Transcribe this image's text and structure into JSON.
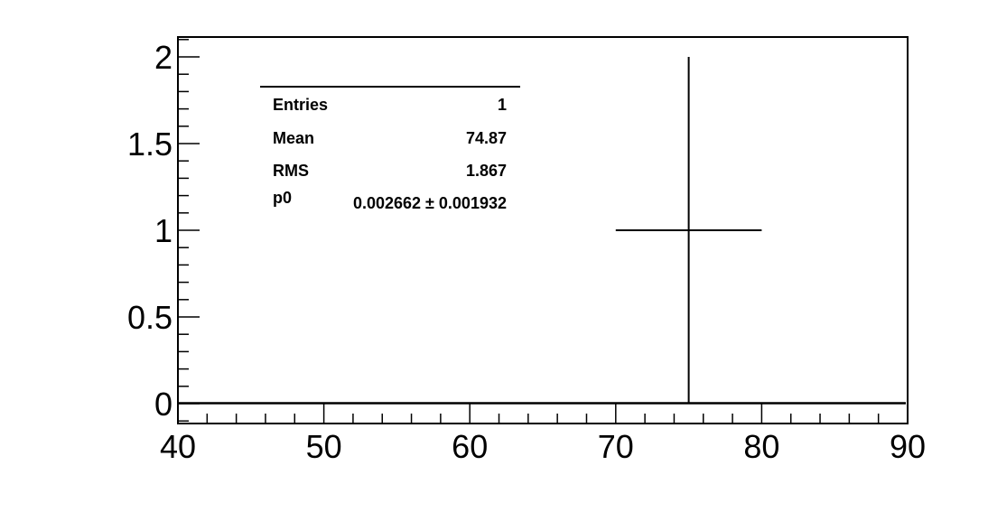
{
  "chart_data": {
    "type": "scatter",
    "title": "",
    "xlabel": "",
    "ylabel": "",
    "xlim": [
      40,
      90
    ],
    "ylim": [
      -0.1,
      2.1
    ],
    "x_ticks": [
      "40",
      "50",
      "60",
      "70",
      "80",
      "90"
    ],
    "y_ticks": [
      "0",
      "0.5",
      "1",
      "1.5",
      "2"
    ],
    "points": [
      {
        "x": 75,
        "y": 1,
        "x_err": 5,
        "y_err": 1
      }
    ],
    "fit_line": {
      "y": 0.002662
    },
    "grid": false,
    "stats_box": {
      "rows": [
        {
          "label": "Entries",
          "value": "1"
        },
        {
          "label": "Mean",
          "value": "74.87"
        },
        {
          "label": "RMS",
          "value": "1.867"
        },
        {
          "label": "p0",
          "value": "0.002662 ± 0.001932"
        }
      ]
    },
    "colors": {
      "line": "#000000",
      "background": "#ffffff"
    }
  }
}
